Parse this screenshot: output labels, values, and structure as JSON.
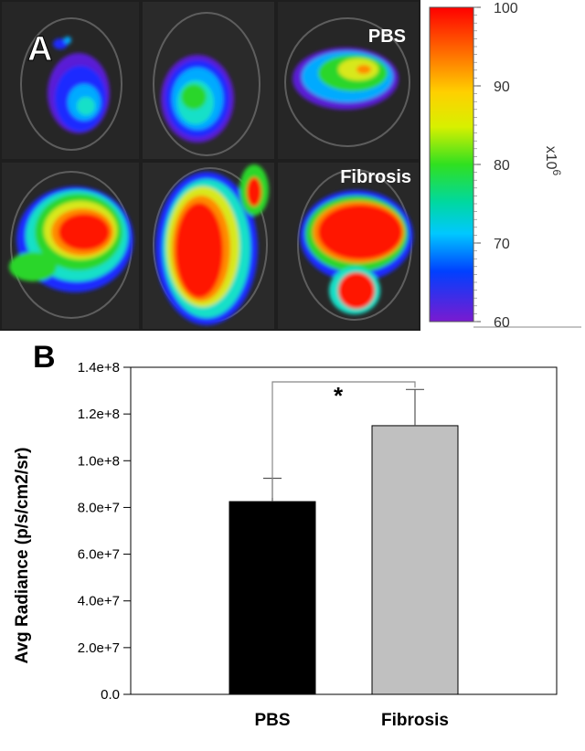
{
  "panel_a": {
    "label": "A",
    "group_labels": [
      "PBS",
      "Fibrosis"
    ],
    "colorbar": {
      "ticks": [
        "100",
        "90",
        "80",
        "70",
        "60"
      ],
      "tick_values": [
        100,
        90,
        80,
        70,
        60
      ],
      "min": 60,
      "max": 100,
      "unit_text": "x10",
      "unit_exponent": "6"
    },
    "heat_colors": [
      "#5a1fd6",
      "#1a2cff",
      "#00aaff",
      "#16e0c8",
      "#2ad62a",
      "#d8e81a",
      "#ff8a00",
      "#ff1800"
    ]
  },
  "panel_b": {
    "label": "B",
    "significance_mark": "*"
  },
  "chart_data": {
    "type": "bar",
    "categories": [
      "PBS",
      "Fibrosis"
    ],
    "values": [
      82500000,
      115000000
    ],
    "errors": [
      10000000,
      15500000
    ],
    "bar_colors": [
      "#000000",
      "#c0c0c0"
    ],
    "ylabel": "Avg Radiance (p/s/cm2/sr)",
    "xlabel": "",
    "ylim": [
      0,
      140000000
    ],
    "yticks": [
      0,
      20000000,
      40000000,
      60000000,
      80000000,
      100000000,
      120000000,
      140000000
    ],
    "ytick_labels": [
      "0.0",
      "2.0e+7",
      "4.0e+7",
      "6.0e+7",
      "8.0e+7",
      "1.0e+8",
      "1.2e+8",
      "1.4e+8"
    ],
    "grid": false,
    "legend": "none"
  }
}
